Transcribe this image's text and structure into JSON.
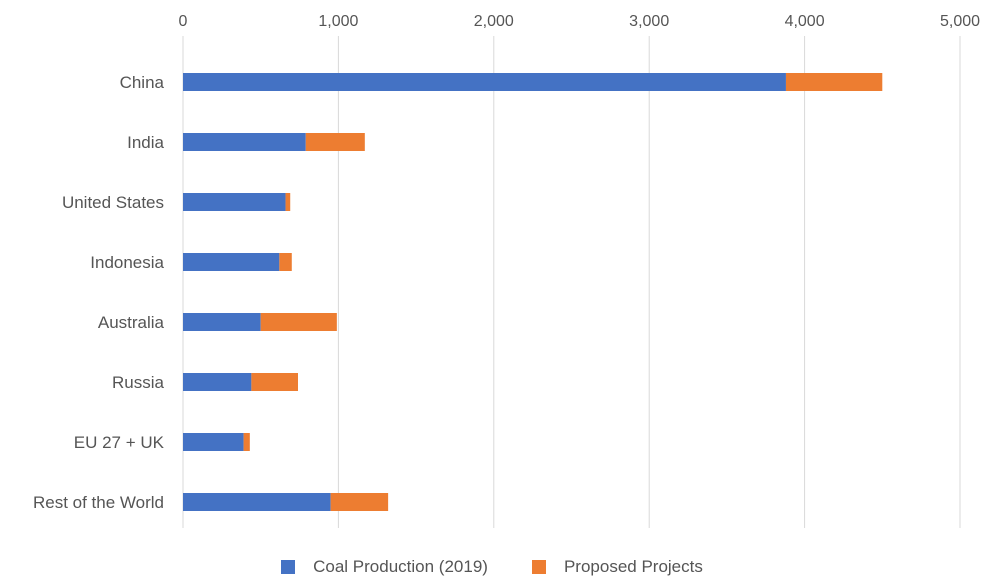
{
  "chart_data": {
    "type": "bar",
    "orientation": "horizontal",
    "stacked": true,
    "title": "",
    "xlabel": "",
    "ylabel": "",
    "xlim": [
      0,
      5000
    ],
    "x_ticks": [
      0,
      1000,
      2000,
      3000,
      4000,
      5000
    ],
    "x_tick_labels": [
      "0",
      "1,000",
      "2,000",
      "3,000",
      "4,000",
      "5,000"
    ],
    "x_axis_position": "top",
    "grid": true,
    "legend_position": "bottom",
    "categories": [
      "China",
      "India",
      "United States",
      "Indonesia",
      "Australia",
      "Russia",
      "EU 27 + UK",
      "Rest of the World"
    ],
    "series": [
      {
        "name": "Coal Production (2019)",
        "color": "#4472c4",
        "values": [
          3880,
          790,
          660,
          620,
          500,
          440,
          390,
          950
        ]
      },
      {
        "name": "Proposed Projects",
        "color": "#ed7d31",
        "values": [
          620,
          380,
          30,
          80,
          490,
          300,
          40,
          370
        ]
      }
    ]
  }
}
